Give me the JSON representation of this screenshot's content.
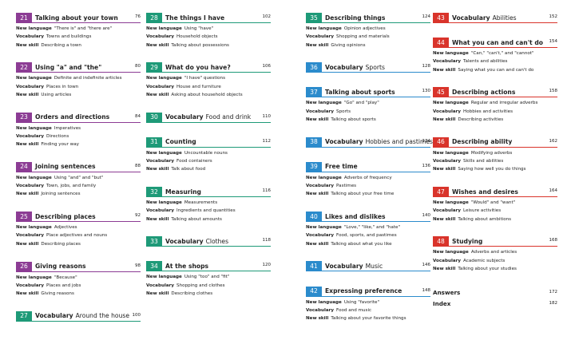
{
  "columns": [
    {
      "entries": [
        {
          "number": "21",
          "title": "Talking about your town",
          "page": "76",
          "color": "#8c3c94",
          "lines": [
            {
              "label": "New language",
              "text": "\"There is\" and \"there are\""
            },
            {
              "label": "Vocabulary",
              "text": "Towns and buildings"
            },
            {
              "label": "New skill",
              "text": "Describing a town"
            }
          ]
        },
        {
          "number": "22",
          "title": "Using \"a\" and \"the\"",
          "page": "80",
          "color": "#8c3c94",
          "lines": [
            {
              "label": "New language",
              "text": "Definite and indefinite articles"
            },
            {
              "label": "Vocabulary",
              "text": "Places in town"
            },
            {
              "label": "New skill",
              "text": "Using articles"
            }
          ]
        },
        {
          "number": "23",
          "title": "Orders and directions",
          "page": "84",
          "color": "#8c3c94",
          "lines": [
            {
              "label": "New language",
              "text": "Imperatives"
            },
            {
              "label": "Vocabulary",
              "text": "Directions"
            },
            {
              "label": "New skill",
              "text": "Finding your way"
            }
          ]
        },
        {
          "number": "24",
          "title": "Joining sentences",
          "page": "88",
          "color": "#8c3c94",
          "lines": [
            {
              "label": "New language",
              "text": "Using \"and\" and \"but\""
            },
            {
              "label": "Vocabulary",
              "text": "Town, jobs, and family"
            },
            {
              "label": "New skill",
              "text": "Joining sentences"
            }
          ]
        },
        {
          "number": "25",
          "title": "Describing places",
          "page": "92",
          "color": "#8c3c94",
          "lines": [
            {
              "label": "New language",
              "text": "Adjectives"
            },
            {
              "label": "Vocabulary",
              "text": "Place adjectives and nouns"
            },
            {
              "label": "New skill",
              "text": "Describing places"
            }
          ]
        },
        {
          "number": "26",
          "title": "Giving reasons",
          "page": "98",
          "color": "#8c3c94",
          "lines": [
            {
              "label": "New language",
              "text": "\"Because\""
            },
            {
              "label": "Vocabulary",
              "text": "Places and jobs"
            },
            {
              "label": "New skill",
              "text": "Giving reasons"
            }
          ]
        },
        {
          "number": "27",
          "title": "Vocabulary",
          "topic": "Around the house",
          "page": "100",
          "color": "#1e9a78"
        }
      ]
    },
    {
      "entries": [
        {
          "number": "28",
          "title": "The things I have",
          "page": "102",
          "color": "#1e9a78",
          "lines": [
            {
              "label": "New language",
              "text": "Using \"have\""
            },
            {
              "label": "Vocabulary",
              "text": "Household objects"
            },
            {
              "label": "New skill",
              "text": "Talking about possessions"
            }
          ]
        },
        {
          "number": "29",
          "title": "What do you have?",
          "page": "106",
          "color": "#1e9a78",
          "lines": [
            {
              "label": "New language",
              "text": "\"I have\" questions"
            },
            {
              "label": "Vocabulary",
              "text": "House and furniture"
            },
            {
              "label": "New skill",
              "text": "Asking about household objects"
            }
          ]
        },
        {
          "number": "30",
          "title": "Vocabulary",
          "topic": "Food and drink",
          "page": "110",
          "color": "#1e9a78"
        },
        {
          "number": "31",
          "title": "Counting",
          "page": "112",
          "color": "#1e9a78",
          "lines": [
            {
              "label": "New language",
              "text": "Uncountable nouns"
            },
            {
              "label": "Vocabulary",
              "text": "Food containers"
            },
            {
              "label": "New skill",
              "text": "Talk about food"
            }
          ]
        },
        {
          "number": "32",
          "title": "Measuring",
          "page": "116",
          "color": "#1e9a78",
          "lines": [
            {
              "label": "New language",
              "text": "Measurements"
            },
            {
              "label": "Vocabulary",
              "text": "Ingredients and quantities"
            },
            {
              "label": "New skill",
              "text": "Talking about amounts"
            }
          ]
        },
        {
          "number": "33",
          "title": "Vocabulary",
          "topic": "Clothes",
          "page": "118",
          "color": "#1e9a78"
        },
        {
          "number": "34",
          "title": "At the shops",
          "page": "120",
          "color": "#1e9a78",
          "lines": [
            {
              "label": "New language",
              "text": "Using \"too\" and \"fit\""
            },
            {
              "label": "Vocabulary",
              "text": "Shopping and clothes"
            },
            {
              "label": "New skill",
              "text": "Describing clothes"
            }
          ]
        }
      ]
    },
    {
      "entries": [
        {
          "number": "35",
          "title": "Describing things",
          "page": "124",
          "color": "#1e9a78",
          "lines": [
            {
              "label": "New language",
              "text": "Opinion adjectives"
            },
            {
              "label": "Vocabulary",
              "text": "Shopping and materials"
            },
            {
              "label": "New skill",
              "text": "Giving opinions"
            }
          ]
        },
        {
          "number": "36",
          "title": "Vocabulary",
          "topic": "Sports",
          "page": "128",
          "color": "#2b8bcc"
        },
        {
          "number": "37",
          "title": "Talking about sports",
          "page": "130",
          "color": "#2b8bcc",
          "lines": [
            {
              "label": "New language",
              "text": "\"Go\" and \"play\""
            },
            {
              "label": "Vocabulary",
              "text": "Sports"
            },
            {
              "label": "New skill",
              "text": "Talking about sports"
            }
          ]
        },
        {
          "number": "38",
          "title": "Vocabulary",
          "topic": "Hobbies and pastimes",
          "page": "134",
          "color": "#2b8bcc"
        },
        {
          "number": "39",
          "title": "Free time",
          "page": "136",
          "color": "#2b8bcc",
          "lines": [
            {
              "label": "New language",
              "text": "Adverbs of frequency"
            },
            {
              "label": "Vocabulary",
              "text": "Pastimes"
            },
            {
              "label": "New skill",
              "text": "Talking about your free time"
            }
          ]
        },
        {
          "number": "40",
          "title": "Likes and dislikes",
          "page": "140",
          "color": "#2b8bcc",
          "lines": [
            {
              "label": "New language",
              "text": "\"Love,\" \"like,\" and \"hate\""
            },
            {
              "label": "Vocabulary",
              "text": "Food, sports, and pastimes"
            },
            {
              "label": "New skill",
              "text": "Talking about what you like"
            }
          ]
        },
        {
          "number": "41",
          "title": "Vocabulary",
          "topic": "Music",
          "page": "146",
          "color": "#2b8bcc"
        },
        {
          "number": "42",
          "title": "Expressing preference",
          "page": "148",
          "color": "#2b8bcc",
          "lines": [
            {
              "label": "New language",
              "text": "Using \"favorite\""
            },
            {
              "label": "Vocabulary",
              "text": "Food and music"
            },
            {
              "label": "New skill",
              "text": "Talking about your favorite things"
            }
          ]
        }
      ]
    },
    {
      "entries": [
        {
          "number": "43",
          "title": "Vocabulary",
          "topic": "Abilities",
          "page": "152",
          "color": "#d9342b"
        },
        {
          "number": "44",
          "title": "What you can and can't do",
          "page": "154",
          "color": "#d9342b",
          "lines": [
            {
              "label": "New language",
              "text": "\"Can,\" \"can't,\" and \"cannot\""
            },
            {
              "label": "Vocabulary",
              "text": "Talents and abilities"
            },
            {
              "label": "New skill",
              "text": "Saying what you can and can't do"
            }
          ]
        },
        {
          "number": "45",
          "title": "Describing actions",
          "page": "158",
          "color": "#d9342b",
          "lines": [
            {
              "label": "New language",
              "text": "Regular and irregular adverbs"
            },
            {
              "label": "Vocabulary",
              "text": "Hobbies and activities"
            },
            {
              "label": "New skill",
              "text": "Describing activities"
            }
          ]
        },
        {
          "number": "46",
          "title": "Describing ability",
          "page": "162",
          "color": "#d9342b",
          "lines": [
            {
              "label": "New language",
              "text": "Modifying adverbs"
            },
            {
              "label": "Vocabulary",
              "text": "Skills and abilities"
            },
            {
              "label": "New skill",
              "text": "Saying how well you do things"
            }
          ]
        },
        {
          "number": "47",
          "title": "Wishes and desires",
          "page": "164",
          "color": "#d9342b",
          "lines": [
            {
              "label": "New language",
              "text": "\"Would\" and \"want\""
            },
            {
              "label": "Vocabulary",
              "text": "Leisure activities"
            },
            {
              "label": "New skill",
              "text": "Talking about ambitions"
            }
          ]
        },
        {
          "number": "48",
          "title": "Studying",
          "page": "168",
          "color": "#d9342b",
          "lines": [
            {
              "label": "New language",
              "text": "Adverbs and articles"
            },
            {
              "label": "Vocabulary",
              "text": "Academic subjects"
            },
            {
              "label": "New skill",
              "text": "Talking about your studies"
            }
          ]
        },
        {
          "title": "Answers",
          "page": "172"
        },
        {
          "title": "Index",
          "page": "182"
        }
      ]
    }
  ]
}
